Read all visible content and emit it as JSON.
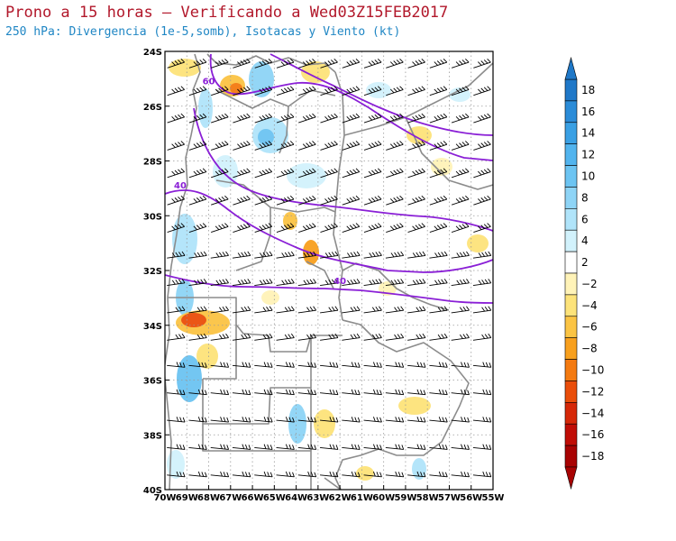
{
  "title": "Prono a 15 horas — Verificando a Wed03Z15FEB2017",
  "subtitle": "250 hPa: Divergencia (1e-5,somb), Isotacas y Viento (kt)",
  "map": {
    "lon_range": [
      -70,
      -55
    ],
    "lat_range": [
      -40,
      -24
    ],
    "lon_ticks": [
      {
        "v": -70,
        "label": "70W"
      },
      {
        "v": -69,
        "label": "69W"
      },
      {
        "v": -68,
        "label": "68W"
      },
      {
        "v": -67,
        "label": "67W"
      },
      {
        "v": -66,
        "label": "66W"
      },
      {
        "v": -65,
        "label": "65W"
      },
      {
        "v": -64,
        "label": "64W"
      },
      {
        "v": -63,
        "label": "63W"
      },
      {
        "v": -62,
        "label": "62W"
      },
      {
        "v": -61,
        "label": "61W"
      },
      {
        "v": -60,
        "label": "60W"
      },
      {
        "v": -59,
        "label": "59W"
      },
      {
        "v": -58,
        "label": "58W"
      },
      {
        "v": -57,
        "label": "57W"
      },
      {
        "v": -56,
        "label": "56W"
      },
      {
        "v": -55,
        "label": "55W"
      }
    ],
    "lat_ticks": [
      {
        "v": -24,
        "label": "24S"
      },
      {
        "v": -26,
        "label": "26S"
      },
      {
        "v": -28,
        "label": "28S"
      },
      {
        "v": -30,
        "label": "30S"
      },
      {
        "v": -32,
        "label": "32S"
      },
      {
        "v": -34,
        "label": "34S"
      },
      {
        "v": -36,
        "label": "36S"
      },
      {
        "v": -38,
        "label": "38S"
      },
      {
        "v": -40,
        "label": "40S"
      }
    ],
    "isotach_labels": [
      {
        "text": "60",
        "lon": -68.0,
        "lat": -25.2
      },
      {
        "text": "40",
        "lon": -69.3,
        "lat": -29.0
      },
      {
        "text": "40",
        "lon": -62.0,
        "lat": -32.5
      }
    ],
    "colors": {
      "isotach": "#8a1fd6",
      "boundary": "#8c8c8c",
      "barb": "#000000",
      "grid": "#9a9a9a"
    }
  },
  "colorbar": {
    "labels": [
      "18",
      "16",
      "14",
      "12",
      "10",
      "8",
      "6",
      "4",
      "2",
      "−2",
      "−4",
      "−6",
      "−8",
      "−10",
      "−12",
      "−14",
      "−16",
      "−18"
    ],
    "colors": [
      "#1f78c8",
      "#2b8cd8",
      "#3aa0e4",
      "#52b4ee",
      "#6cc4f2",
      "#8ed4f6",
      "#b0e4fa",
      "#d2f2fc",
      "#ffffff",
      "#fff3b8",
      "#fde37a",
      "#fbc444",
      "#f8a01e",
      "#f47a10",
      "#ea4e0a",
      "#d62808",
      "#c00d06",
      "#a80303"
    ]
  }
}
